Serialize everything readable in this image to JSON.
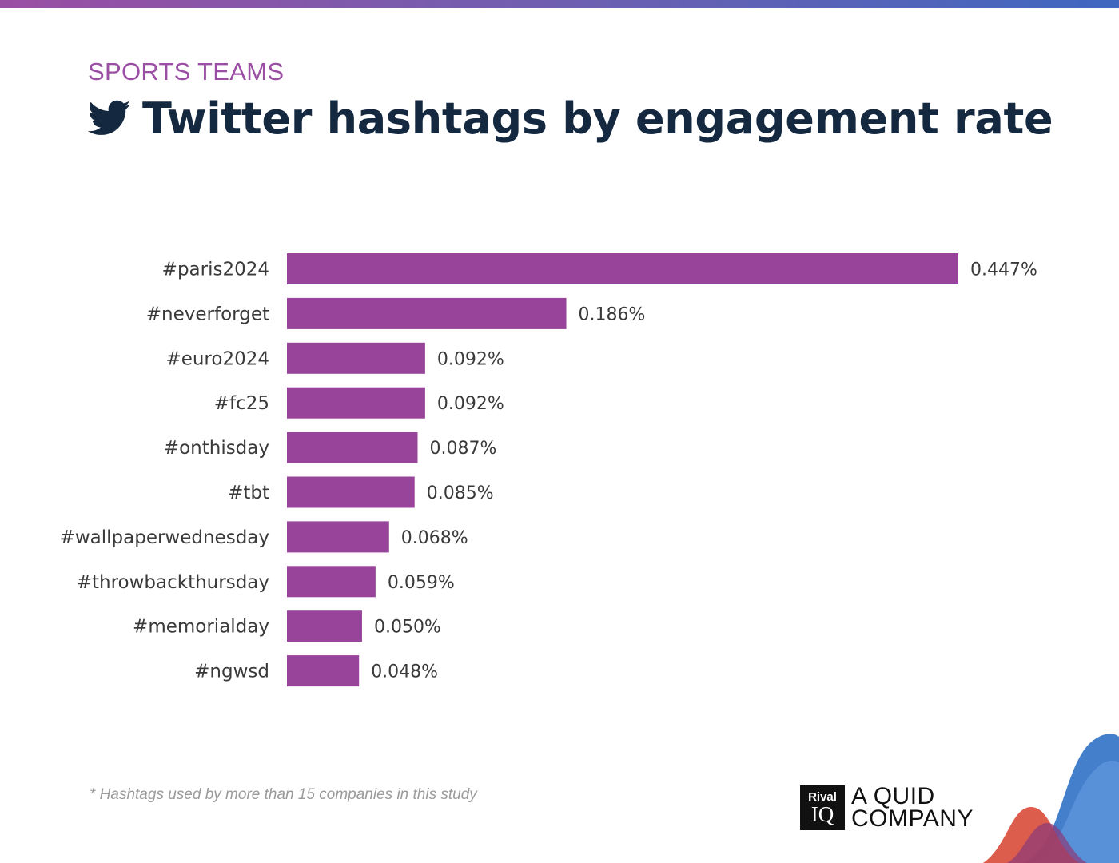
{
  "header": {
    "eyebrow": "SPORTS TEAMS",
    "title": "Twitter hashtags by engagement rate",
    "title_icon": "twitter-bird-icon"
  },
  "chart_data": {
    "type": "bar",
    "orientation": "horizontal",
    "categories": [
      "#paris2024",
      "#neverforget",
      "#euro2024",
      "#fc25",
      "#onthisday",
      "#tbt",
      "#wallpaperwednesday",
      "#throwbackthursday",
      "#memorialday",
      "#ngwsd"
    ],
    "values": [
      0.447,
      0.186,
      0.092,
      0.092,
      0.087,
      0.085,
      0.068,
      0.059,
      0.05,
      0.048
    ],
    "value_labels": [
      "0.447%",
      "0.186%",
      "0.092%",
      "0.092%",
      "0.087%",
      "0.085%",
      "0.068%",
      "0.059%",
      "0.050%",
      "0.048%"
    ],
    "title": "Twitter hashtags by engagement rate",
    "xlabel": "",
    "ylabel": "",
    "unit": "%",
    "grid": false,
    "bar_color": "#98449a"
  },
  "footer": {
    "footnote": "* Hashtags used by more than 15 companies in this study",
    "logo_top": "Rival",
    "logo_bottom": "IQ",
    "brand_line1": "A QUID",
    "brand_line2": "COMPANY"
  },
  "colors": {
    "accent": "#9b4fa4",
    "title": "#142840",
    "bar": "#98449a",
    "decor_blue": "#3a78c9",
    "decor_red": "#d94b3a"
  }
}
